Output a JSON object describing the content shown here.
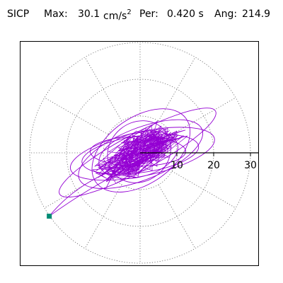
{
  "header": {
    "station": "SICP",
    "max_label": "Max:",
    "max_value": "30.1",
    "max_unit_base": "cm/s",
    "max_unit_exp": "2",
    "per_label": "Per:",
    "per_value": "0.420 s",
    "ang_label": "Ang:",
    "ang_value": "214.9"
  },
  "chart_data": {
    "type": "polar-trajectory",
    "title": "",
    "unit": "cm/s^2",
    "r_ticks": [
      "10",
      "20",
      "30"
    ],
    "r_tick_values": [
      10,
      20,
      30
    ],
    "r_max": 30,
    "spoke_angles_deg": [
      0,
      30,
      60,
      90,
      120,
      150,
      180,
      210,
      240,
      270,
      300,
      330
    ],
    "grid": "dotted",
    "peak": {
      "amplitude": 30.1,
      "angle_deg": 214.9
    },
    "orbit_major_axis_deg": 28,
    "orbit_series": [
      {
        "semi_major": 24,
        "semi_minor": 5,
        "rotation_deg": 28
      },
      {
        "semi_major": 18,
        "semi_minor": 7,
        "rotation_deg": 22
      },
      {
        "semi_major": 15,
        "semi_minor": 9,
        "rotation_deg": 35
      },
      {
        "semi_major": 11,
        "semi_minor": 6,
        "rotation_deg": 15
      },
      {
        "semi_major": 9,
        "semi_minor": 8,
        "rotation_deg": 40
      },
      {
        "semi_major": 20,
        "semi_minor": 6,
        "rotation_deg": 12
      },
      {
        "semi_major": 13,
        "semi_minor": 4,
        "rotation_deg": 0
      },
      {
        "semi_major": 16,
        "semi_minor": 5,
        "rotation_deg": 8
      }
    ],
    "colors": {
      "trace": "#9400d3",
      "marker": "#008b74",
      "grid": "#666666",
      "axis": "#000000"
    }
  }
}
